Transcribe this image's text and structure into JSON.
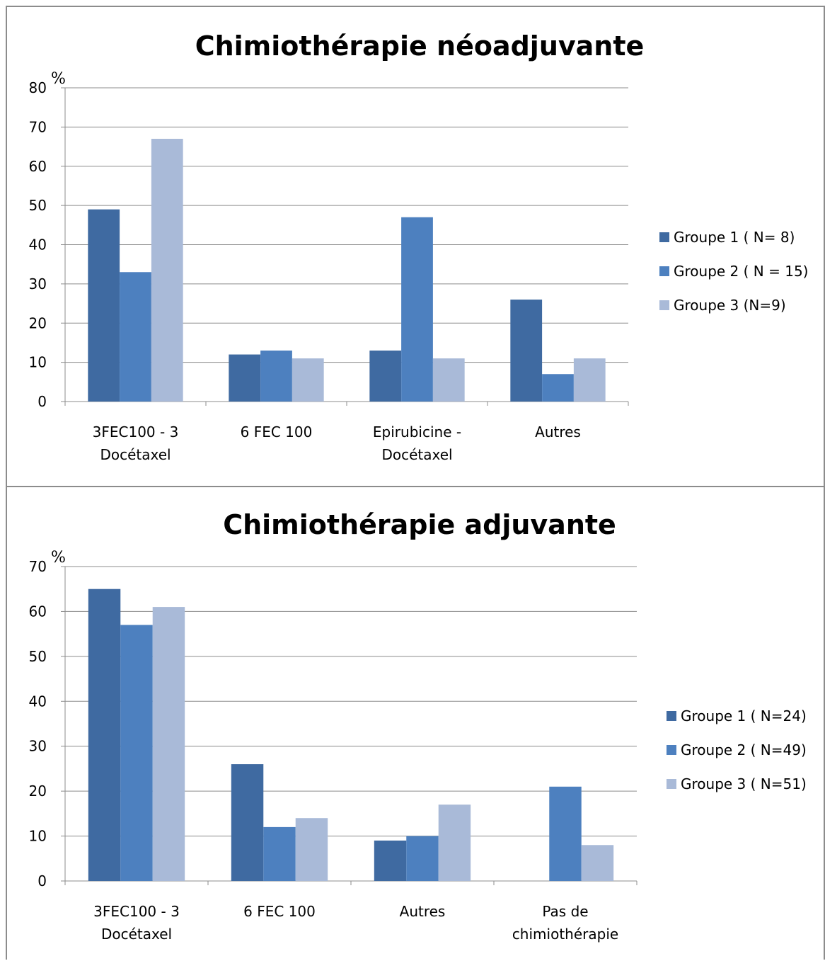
{
  "chart_data": [
    {
      "type": "bar",
      "title": "Chimiothérapie néoadjuvante",
      "ylabel": "%",
      "ylim": [
        0,
        80
      ],
      "yticks": [
        0,
        10,
        20,
        30,
        40,
        50,
        60,
        70,
        80
      ],
      "grid": true,
      "legend_position": "right",
      "categories": [
        [
          "3FEC100 - 3",
          "Docétaxel"
        ],
        [
          "6 FEC 100"
        ],
        [
          "Epirubicine -",
          "Docétaxel"
        ],
        [
          "Autres"
        ]
      ],
      "series": [
        {
          "name": "Groupe 1 ( N= 8)",
          "color": "#3f6aa1",
          "values": [
            49,
            12,
            13,
            26
          ]
        },
        {
          "name": "Groupe 2 ( N = 15)",
          "color": "#4d80bf",
          "values": [
            33,
            13,
            47,
            7
          ]
        },
        {
          "name": "Groupe 3 (N=9)",
          "color": "#a9bad8",
          "values": [
            67,
            11,
            11,
            11
          ]
        }
      ]
    },
    {
      "type": "bar",
      "title": "Chimiothérapie adjuvante",
      "ylabel": "%",
      "ylim": [
        0,
        70
      ],
      "yticks": [
        0,
        10,
        20,
        30,
        40,
        50,
        60,
        70
      ],
      "grid": true,
      "legend_position": "right",
      "categories": [
        [
          "3FEC100 - 3",
          "Docétaxel"
        ],
        [
          "6 FEC 100"
        ],
        [
          "Autres"
        ],
        [
          "Pas de",
          "chimiothérapie"
        ]
      ],
      "series": [
        {
          "name": "Groupe 1 ( N=24)",
          "color": "#3f6aa1",
          "values": [
            65,
            26,
            9,
            0
          ]
        },
        {
          "name": "Groupe 2 ( N=49)",
          "color": "#4d80bf",
          "values": [
            57,
            12,
            10,
            21
          ]
        },
        {
          "name": "Groupe 3 ( N=51)",
          "color": "#a9bad8",
          "values": [
            61,
            14,
            17,
            8
          ]
        }
      ]
    }
  ]
}
